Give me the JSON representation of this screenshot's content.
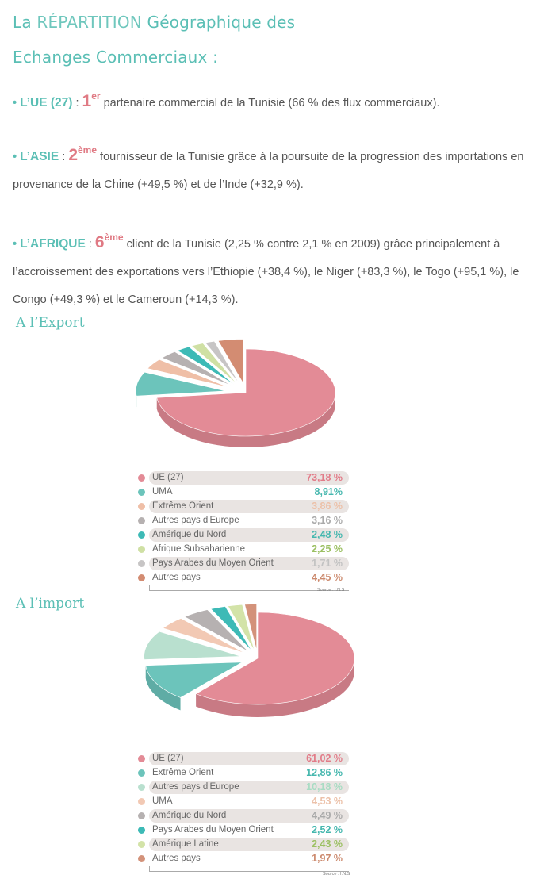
{
  "header": {
    "title_line1_part1": "La ",
    "title_line1_caps": "RÉPARTITION",
    "title_line1_part2": " Géographique des",
    "title_line2": "Echanges Commerciaux :"
  },
  "paragraphs": {
    "ue": {
      "lead": "L’UE (27)",
      "sep": " : ",
      "rank": "1",
      "sup": "er",
      "text": " partenaire commercial de la Tunisie (66 % des flux commerciaux)."
    },
    "asie": {
      "lead": "L’ASIE",
      "sep": " : ",
      "rank": "2",
      "sup": "ème",
      "text": " fournisseur de la Tunisie grâce à la poursuite de la progression des importations en provenance de la Chine (+49,5 %) et de l’Inde (+32,9 %)."
    },
    "afrique": {
      "lead": "L’AFRIQUE",
      "sep": " : ",
      "rank": "6",
      "sup": "ème",
      "text": " client de la Tunisie (2,25 % contre 2,1 % en 2009) grâce principalement à l’accroissement des exportations vers l’Ethiopie (+38,4 %), le Niger (+83,3 %), le Togo (+95,1 %), le Congo (+49,3 %) et le Cameroun (+14,3 %)."
    }
  },
  "sections": {
    "export_title": "A l’Export",
    "import_title": "A l’import"
  },
  "chart_data": [
    {
      "type": "pie",
      "title": "A l’Export",
      "categories": [
        "UE (27)",
        "UMA",
        "Extrême Orient",
        "Autres pays d'Europe",
        "Amérique du Nord",
        "Afrique Subsaharienne",
        "Pays Arabes du Moyen Orient",
        "Autres pays"
      ],
      "value_labels": [
        "73,18 %",
        "8,91%",
        "3,86 %",
        "3,16 %",
        "2,48 %",
        "2,25 %",
        "1,71 %",
        "4,45 %"
      ],
      "values": [
        73.18,
        8.91,
        3.86,
        3.16,
        2.48,
        2.25,
        1.71,
        4.45
      ],
      "colors": [
        "#e38b96",
        "#6cc4bb",
        "#efbfa7",
        "#b6b1b1",
        "#3dbab6",
        "#cfe0a4",
        "#c7c5c5",
        "#d38c72"
      ],
      "value_colors": [
        "#e27b88",
        "#45b7ae",
        "#ecc1a9",
        "#aaaaaa",
        "#45b7ae",
        "#9cc063",
        "#c2c2c2",
        "#cc8a6e"
      ],
      "source": "Source : I.N.S",
      "legend_position": "bottom"
    },
    {
      "type": "pie",
      "title": "A l’import",
      "categories": [
        "UE (27)",
        "Extrême Orient",
        "Autres pays d'Europe",
        "UMA",
        "Amérique du Nord",
        "Pays Arabes du Moyen Orient",
        "Amérique Latine",
        "Autres pays"
      ],
      "value_labels": [
        "61,02 %",
        "12,86 %",
        "10,18 %",
        "4,53 %",
        "4,49 %",
        "2,52 %",
        "2,43 %",
        "1,97 %"
      ],
      "values": [
        61.02,
        12.86,
        10.18,
        4.53,
        4.49,
        2.52,
        2.43,
        1.97
      ],
      "colors": [
        "#e38b96",
        "#6cc4bb",
        "#b9e0cf",
        "#f2c9b4",
        "#b6b1b1",
        "#3dbab6",
        "#d3e3a8",
        "#d3927a"
      ],
      "value_colors": [
        "#e27b88",
        "#45b7ae",
        "#a8dcc3",
        "#ecc1a9",
        "#aaaaaa",
        "#45b7ae",
        "#9cc063",
        "#cc8a6e"
      ],
      "source": "Source : I.N.S",
      "legend_position": "bottom"
    }
  ]
}
